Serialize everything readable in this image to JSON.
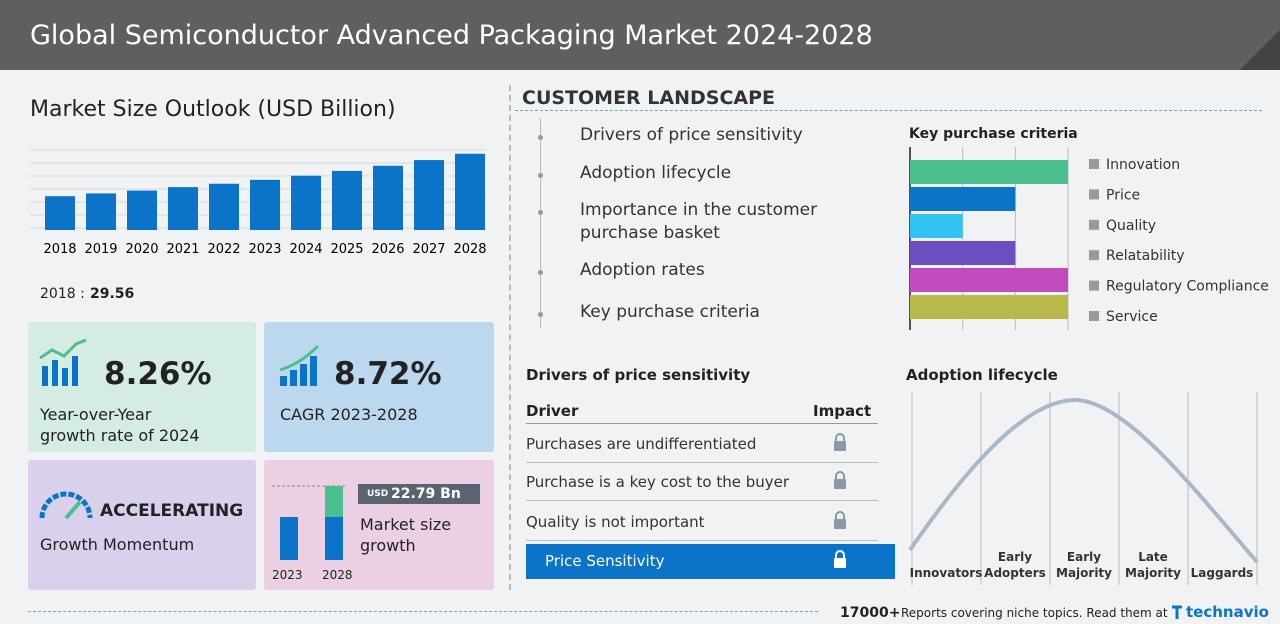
{
  "header": {
    "title": "Global Semiconductor Advanced Packaging Market 2024-2028"
  },
  "chart_data": [
    {
      "type": "bar",
      "title": "Market Size Outlook (USD Billion)",
      "categories": [
        "2018",
        "2019",
        "2020",
        "2021",
        "2022",
        "2023",
        "2024",
        "2025",
        "2026",
        "2027",
        "2028"
      ],
      "values": [
        29.56,
        32,
        34.5,
        37.5,
        40.5,
        43.9,
        47.5,
        51.7,
        56.2,
        61.2,
        66.7
      ],
      "color": "#0b74c9",
      "ylim": [
        0,
        70
      ]
    },
    {
      "type": "hbar",
      "title": "Key purchase criteria",
      "categories": [
        "Innovation",
        "Price",
        "Quality",
        "Relatability",
        "Regulatory Compliance",
        "Service"
      ],
      "values": [
        3,
        2,
        1,
        2,
        3,
        3
      ],
      "colors": [
        "#4cbf8f",
        "#0b74c9",
        "#33c3f2",
        "#6b4fbf",
        "#c04cbf",
        "#b9b84a"
      ],
      "xlim": [
        0,
        3
      ]
    }
  ],
  "base": {
    "label": "2018 :"
  },
  "cards": {
    "yoy": {
      "value": "8.26%",
      "label": "Year-over-Year growth rate of 2024"
    },
    "cagr": {
      "value": "8.72%",
      "label": "CAGR 2023-2028"
    },
    "momentum": {
      "value": "ACCELERATING",
      "label": "Growth Momentum"
    },
    "growth": {
      "currency": "USD",
      "value": "22.79 Bn",
      "label": "Market size growth",
      "years": [
        "2023",
        "2028"
      ]
    }
  },
  "landscape": {
    "title": "CUSTOMER LANDSCAPE",
    "items": [
      "Drivers of price sensitivity",
      "Adoption lifecycle",
      "Importance in the customer purchase basket",
      "Adoption rates",
      "Key purchase criteria"
    ]
  },
  "drivers": {
    "title": "Drivers of price sensitivity",
    "headers": [
      "Driver",
      "Impact"
    ],
    "rows": [
      "Purchases are undifferentiated",
      "Purchase is a key cost to the buyer",
      "Quality is not important",
      "Price Sensitivity"
    ]
  },
  "adoption": {
    "title": "Adoption lifecycle",
    "stages": [
      "Innovators",
      "Early Adopters",
      "Early Majority",
      "Late Majority",
      "Laggards"
    ]
  },
  "footer": {
    "count": "17000+",
    "text": "Reports covering niche topics. Read them at",
    "brand": "technavio"
  }
}
